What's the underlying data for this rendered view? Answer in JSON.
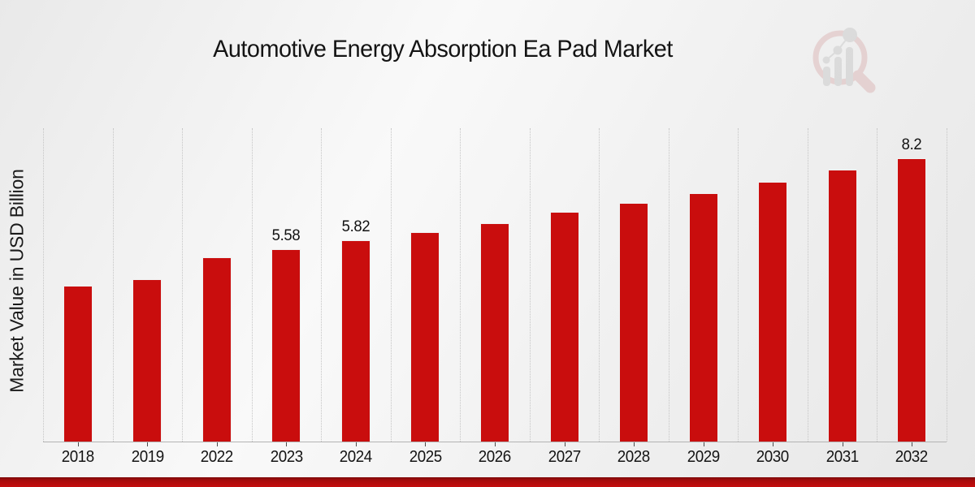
{
  "chart_data": {
    "type": "bar",
    "title": "Automotive Energy Absorption Ea Pad Market",
    "xlabel": "",
    "ylabel": "Market Value in USD Billion",
    "categories": [
      "2018",
      "2019",
      "2022",
      "2023",
      "2024",
      "2025",
      "2026",
      "2027",
      "2028",
      "2029",
      "2030",
      "2031",
      "2032"
    ],
    "values": [
      4.5,
      4.71,
      5.34,
      5.58,
      5.82,
      6.07,
      6.33,
      6.64,
      6.92,
      7.2,
      7.53,
      7.86,
      8.2
    ],
    "value_labels": [
      "",
      "",
      "",
      "5.58",
      "5.82",
      "",
      "",
      "",
      "",
      "",
      "",
      "",
      "8.2"
    ],
    "ylim": [
      0,
      9.07
    ],
    "grid": "vertical-dotted-category-separators",
    "legend": "none",
    "bar_color": "#c90d0d",
    "accent_strip_color": "#a90c0c",
    "logo": "magnifier-bar-chart-watermark"
  }
}
